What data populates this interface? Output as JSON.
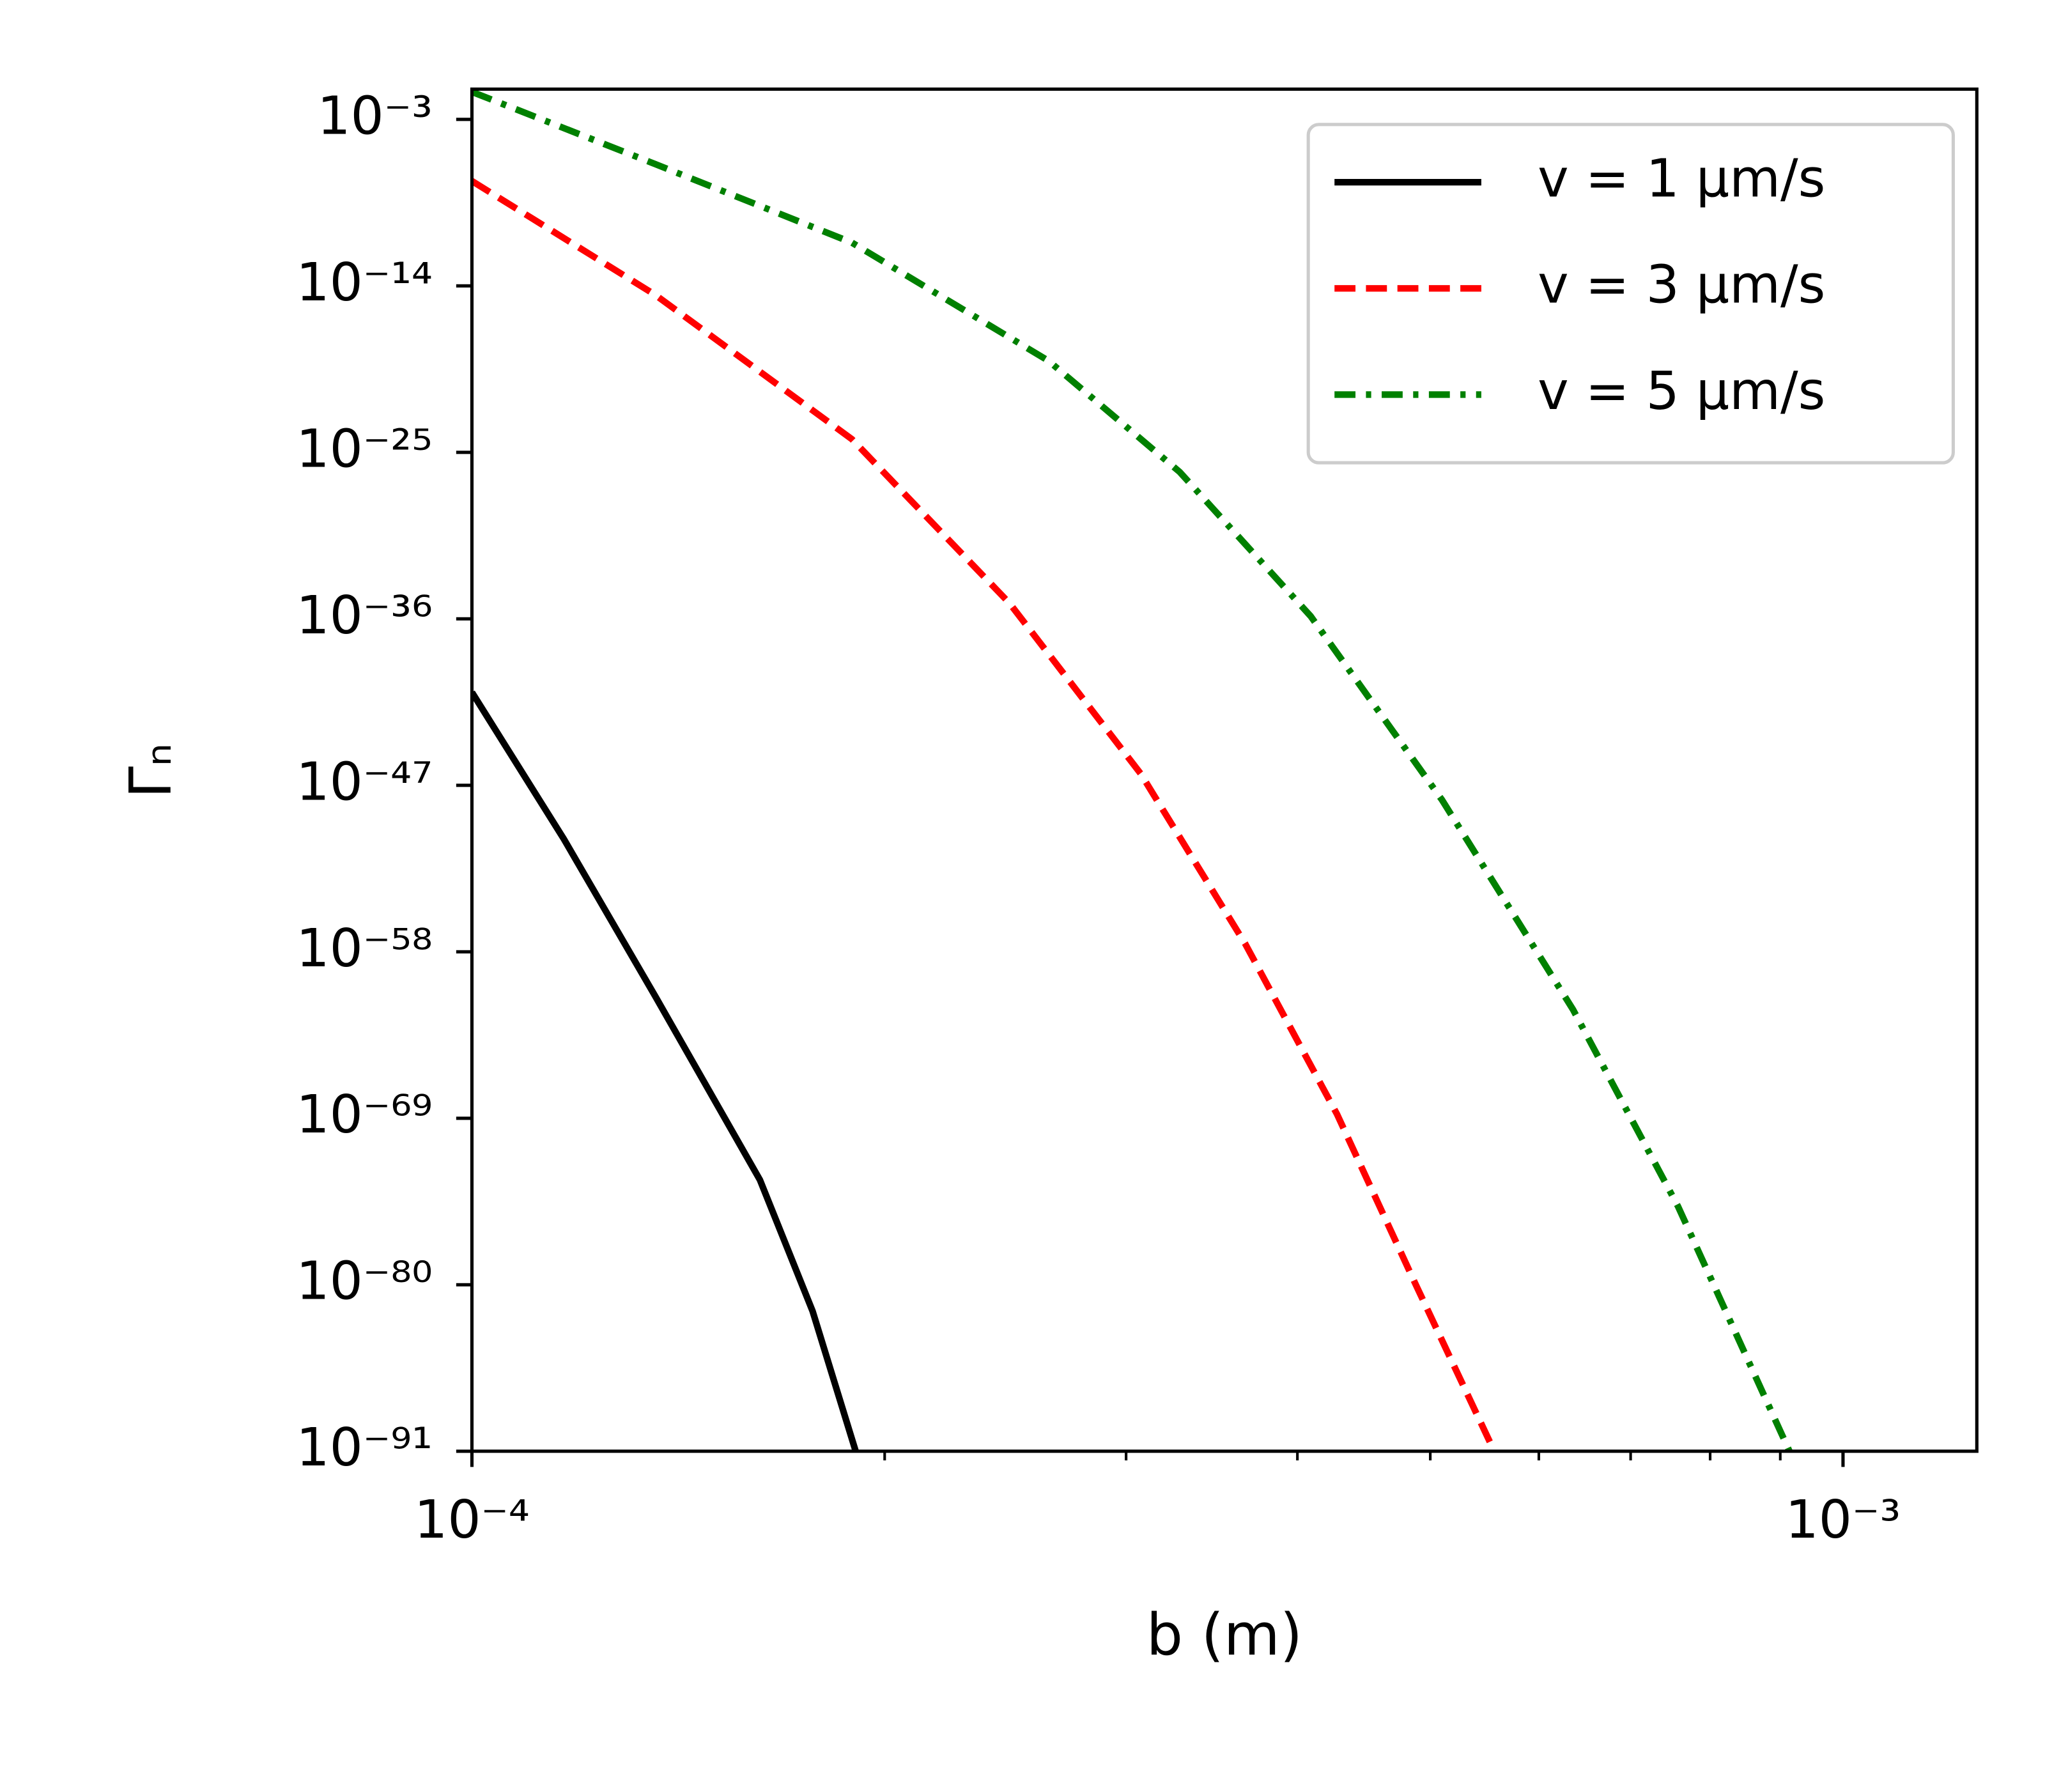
{
  "chart_data": {
    "type": "line",
    "xlabel": "b (m)",
    "ylabel": "Γₙ",
    "xscale": "log",
    "yscale": "log",
    "xlim": [
      0.0001,
      0.001252
    ],
    "ylim": [
      1e-91,
      0.1
    ],
    "xticks": [
      {
        "value": 0.0001,
        "label": "10⁻⁴"
      },
      {
        "value": 0.001,
        "label": "10⁻³"
      }
    ],
    "xminorticks": [
      0.0002,
      0.0003,
      0.0004,
      0.0005,
      0.0006,
      0.0007,
      0.0008,
      0.0009
    ],
    "yticks": [
      {
        "value": 0.001,
        "label": "10⁻³"
      },
      {
        "value": 1e-14,
        "label": "10⁻¹⁴"
      },
      {
        "value": 1e-25,
        "label": "10⁻²⁵"
      },
      {
        "value": 1e-36,
        "label": "10⁻³⁶"
      },
      {
        "value": 1e-47,
        "label": "10⁻⁴⁷"
      },
      {
        "value": 1e-58,
        "label": "10⁻⁵⁸"
      },
      {
        "value": 1e-69,
        "label": "10⁻⁶⁹"
      },
      {
        "value": 1e-80,
        "label": "10⁻⁸⁰"
      },
      {
        "value": 1e-91,
        "label": "10⁻⁹¹"
      }
    ],
    "legend": "upper right",
    "series": [
      {
        "name": "v = 1 μm/s",
        "color": "#000000",
        "style": "solid",
        "x": [
          0.0001,
          0.0001167,
          0.0001361,
          0.0001622,
          0.0001772,
          0.0001905
        ],
        "values": [
          1.4e-41,
          2.8e-51,
          1.1e-61,
          8.5e-74,
          1.8e-82,
          1e-91
        ]
      },
      {
        "name": "v = 3 μm/s",
        "color": "#ff0000",
        "style": "dashed",
        "x": [
          0.0001,
          0.0001361,
          0.0001893,
          0.0002466,
          0.0003074,
          0.0003665,
          0.0004276,
          0.000488,
          0.0005567
        ],
        "values": [
          8.5e-08,
          2.5e-15,
          7.4e-25,
          1.1e-35,
          6e-47,
          3.3e-58,
          1.8e-69,
          1e-80,
          1e-91
        ]
      },
      {
        "name": "v = 5 μm/s",
        "color": "#008000",
        "style": "dashdot",
        "x": [
          0.0001,
          0.0001361,
          0.0001893,
          0.0002634,
          0.0003283,
          0.000409,
          0.0005099,
          0.0006355,
          0.000758,
          0.000914
        ],
        "values": [
          0.066,
          1.1e-06,
          7.2e-12,
          1.1e-19,
          5e-27,
          1.5e-36,
          1.1e-48,
          1.5e-62,
          1.5e-75,
          1e-91
        ]
      }
    ]
  }
}
